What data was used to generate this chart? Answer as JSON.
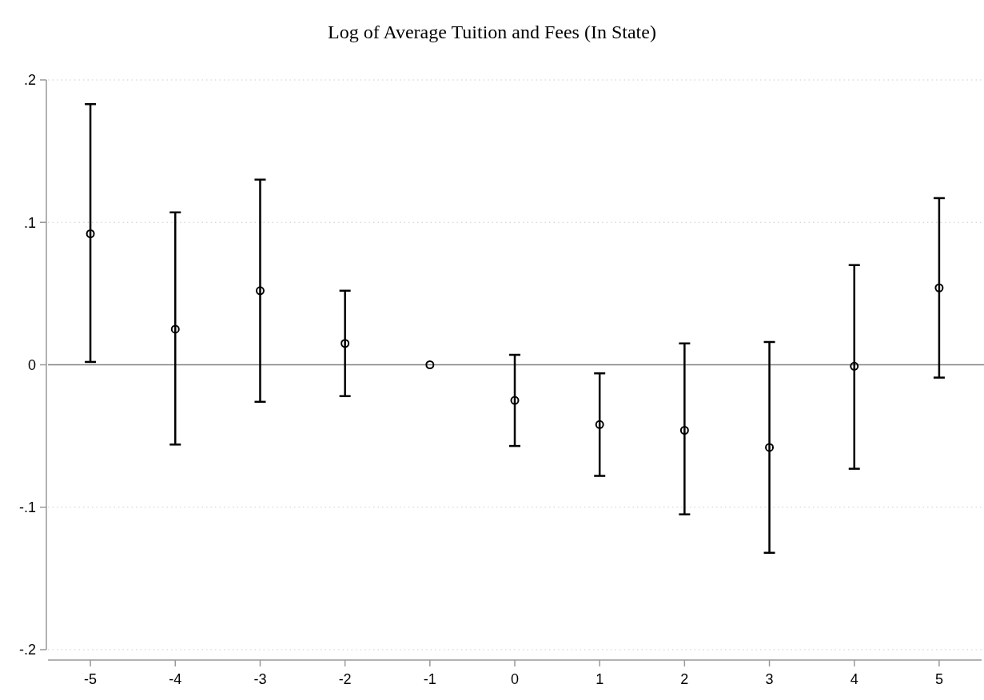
{
  "chart_data": {
    "type": "scatter",
    "title": "Log of Average Tuition and Fees (In State)",
    "x": [
      -5,
      -4,
      -3,
      -2,
      -1,
      0,
      1,
      2,
      3,
      4,
      5
    ],
    "values": [
      0.092,
      0.025,
      0.052,
      0.015,
      0,
      -0.025,
      -0.042,
      -0.046,
      -0.058,
      -0.001,
      0.054
    ],
    "errors": [
      [
        0.002,
        0.183
      ],
      [
        -0.056,
        0.107
      ],
      [
        -0.026,
        0.13
      ],
      [
        -0.022,
        0.052
      ],
      null,
      [
        -0.057,
        0.007
      ],
      [
        -0.078,
        -0.006
      ],
      [
        -0.105,
        0.015
      ],
      [
        -0.132,
        0.016
      ],
      [
        -0.073,
        0.07
      ],
      [
        -0.009,
        0.117
      ]
    ],
    "color": "#000000",
    "marker": "circle",
    "xlim": [
      -5.5,
      5.5
    ],
    "xticks": [
      -5,
      -4,
      -3,
      -2,
      -1,
      0,
      1,
      2,
      3,
      4,
      5
    ],
    "ylim": [
      -0.2,
      0.2
    ],
    "yticks": [
      {
        "value": -0.2,
        "label": "-.2"
      },
      {
        "value": -0.1,
        "label": "-.1"
      },
      {
        "value": 0,
        "label": "0"
      },
      {
        "value": 0.1,
        "label": ".1"
      },
      {
        "value": 0.2,
        "label": ".2"
      }
    ],
    "grid": "y",
    "ref_lines": [
      {
        "axis": "y",
        "value": 0,
        "color": "#808080"
      }
    ]
  }
}
